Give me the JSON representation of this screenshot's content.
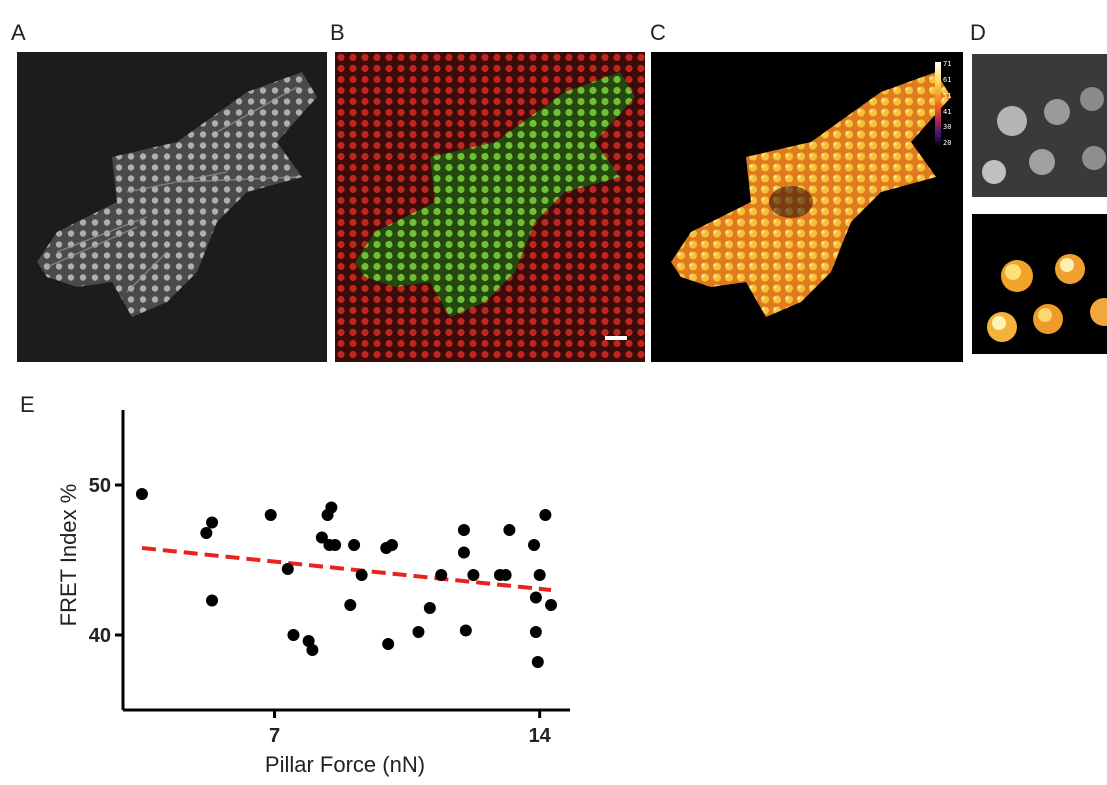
{
  "panels": {
    "a": {
      "label": "A"
    },
    "b": {
      "label": "B"
    },
    "c": {
      "label": "C",
      "colorbar_ticks": [
        "71",
        "61",
        "51",
        "41",
        "30",
        "20"
      ]
    },
    "d": {
      "label": "D"
    },
    "e": {
      "label": "E"
    }
  },
  "chart_data": {
    "type": "scatter",
    "title": "",
    "xlabel": "Pillar Force (nN)",
    "ylabel": "FRET Index %",
    "xlim": [
      3,
      14.8
    ],
    "ylim": [
      35,
      55
    ],
    "xticks": [
      7,
      14
    ],
    "yticks": [
      40,
      50
    ],
    "grid": false,
    "points": {
      "x": [
        3.5,
        5.2,
        5.35,
        5.35,
        6.9,
        7.35,
        7.5,
        7.9,
        8.0,
        8.25,
        8.4,
        8.45,
        8.5,
        8.6,
        9.0,
        9.1,
        9.3,
        9.95,
        10.0,
        10.1,
        10.8,
        11.1,
        11.4,
        12.0,
        12.0,
        12.05,
        12.25,
        12.95,
        13.1,
        13.2,
        13.85,
        13.9,
        13.9,
        13.95,
        14.0,
        14.15,
        14.3
      ],
      "y": [
        49.4,
        46.8,
        47.5,
        42.3,
        48.0,
        44.4,
        40.0,
        39.6,
        39.0,
        46.5,
        48.0,
        46.0,
        48.5,
        46.0,
        42.0,
        46.0,
        44.0,
        45.8,
        39.4,
        46.0,
        40.2,
        41.8,
        44.0,
        47.0,
        45.5,
        40.3,
        44.0,
        44.0,
        44.0,
        47.0,
        46.0,
        42.5,
        40.2,
        38.2,
        44.0,
        48.0,
        42.0
      ]
    },
    "trendline": {
      "x": [
        3.5,
        14.3
      ],
      "y": [
        45.8,
        43.0
      ],
      "style": "dashed",
      "color": "#e8231f"
    }
  }
}
